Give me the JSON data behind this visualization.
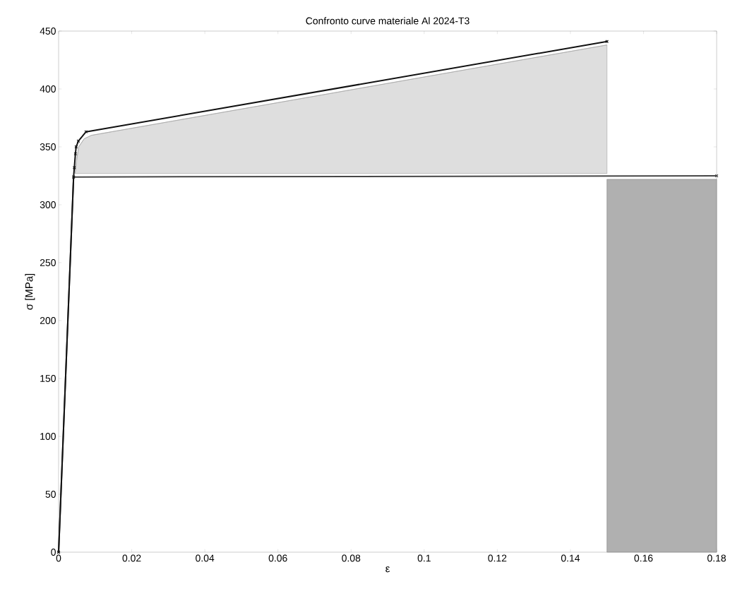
{
  "chart_data": {
    "type": "line",
    "title": "Confronto curve materiale Al 2024-T3",
    "xlabel": "ε",
    "ylabel": "σ [MPa]",
    "xlim": [
      0,
      0.18
    ],
    "ylim": [
      0,
      450
    ],
    "xticks": [
      0,
      0.02,
      0.04,
      0.06,
      0.08,
      0.1,
      0.12,
      0.14,
      0.16,
      0.18
    ],
    "yticks": [
      0,
      50,
      100,
      150,
      200,
      250,
      300,
      350,
      400,
      450
    ],
    "grid": false,
    "line_style": "solid",
    "series": [
      {
        "type": "line",
        "color": "#a0a0a0",
        "x": [
          0.0045,
          0.005,
          0.0055,
          0.007,
          0.009,
          0.15
        ],
        "values": [
          327,
          340,
          350,
          357,
          360,
          438
        ],
        "lower": [
          327,
          327,
          327,
          327,
          327,
          327
        ],
        "upper": [
          327,
          340,
          350,
          357,
          360,
          438
        ],
        "marker": "none"
      },
      {
        "type": "area",
        "color": "#b0b0b0",
        "x": [
          0.15,
          0.18
        ],
        "values": [
          322,
          322
        ]
      },
      {
        "color": "#474747",
        "x": [
          0,
          0.0041,
          0.18
        ],
        "values": [
          0,
          324,
          325
        ],
        "marker": "cross"
      },
      {
        "color": "#111111",
        "x": [
          0,
          0.0041,
          0.0043,
          0.0046,
          0.0048,
          0.0054,
          0.0075,
          0.15
        ],
        "values": [
          0,
          324,
          332,
          344,
          350,
          355,
          363,
          441
        ],
        "marker": "cross"
      }
    ]
  }
}
